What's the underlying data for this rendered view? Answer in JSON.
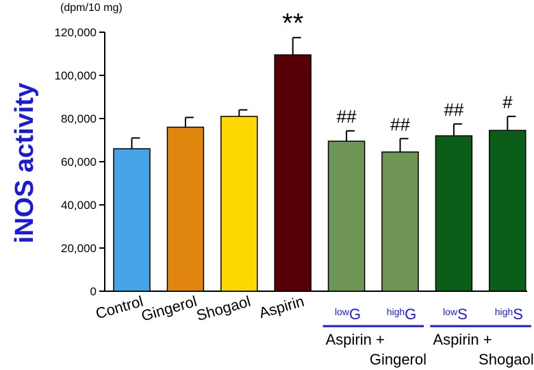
{
  "chart_data": {
    "type": "bar",
    "unit_label": "(dpm/10 mg)",
    "ylabel": "iNOS activity",
    "ylim": [
      0,
      120000
    ],
    "yticks": [
      0,
      20000,
      40000,
      60000,
      80000,
      100000,
      120000
    ],
    "ytick_labels": [
      "0",
      "20,000",
      "40,000",
      "60,000",
      "80,000",
      "100,000",
      "120,000"
    ],
    "categories": [
      {
        "name": "Control",
        "value": 66000,
        "error": 5000,
        "color": "#45a3e6",
        "annotation": ""
      },
      {
        "name": "Gingerol",
        "value": 76000,
        "error": 4500,
        "color": "#e0860f",
        "annotation": ""
      },
      {
        "name": "Shogaol",
        "value": 81000,
        "error": 3000,
        "color": "#ffd800",
        "annotation": ""
      },
      {
        "name": "Aspirin",
        "value": 109500,
        "error": 8000,
        "color": "#560006",
        "annotation": "**"
      },
      {
        "prefix": "low",
        "name": "G",
        "value": 69500,
        "error": 4800,
        "color": "#6f9556",
        "annotation": "##"
      },
      {
        "prefix": "high",
        "name": "G",
        "value": 64500,
        "error": 6200,
        "color": "#6f9556",
        "annotation": "##"
      },
      {
        "prefix": "low",
        "name": "S",
        "value": 72000,
        "error": 5500,
        "color": "#0a5e18",
        "annotation": "##"
      },
      {
        "prefix": "high",
        "name": "S",
        "value": 74500,
        "error": 6500,
        "color": "#0a5e18",
        "annotation": "#"
      }
    ],
    "groups": [
      {
        "line1": "Aspirin +",
        "line2": "Gingerol"
      },
      {
        "line1": "Aspirin +",
        "line2": "Shogaol"
      }
    ],
    "colors": {
      "axis_title": "#1a1ad8",
      "sub_label": "#1a1ad8",
      "group_line": "#1a1ad8",
      "text": "#000000"
    }
  }
}
